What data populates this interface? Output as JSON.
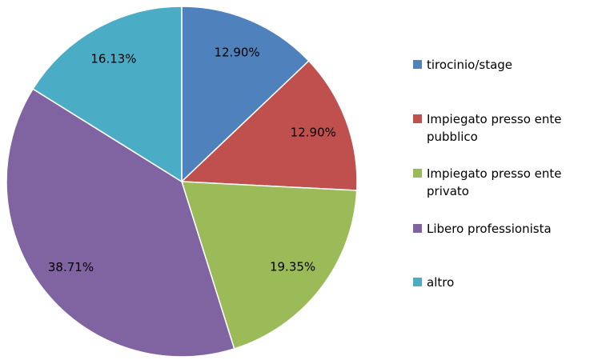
{
  "chart_data": {
    "type": "pie",
    "categories": [
      "tirocinio/stage",
      "Impiegato presso ente pubblico",
      "Impiegato presso ente privato",
      "Libero professionista",
      "altro"
    ],
    "values": [
      12.9,
      12.9,
      19.35,
      38.71,
      16.13
    ],
    "value_labels": [
      "12.90%",
      "12.90%",
      "19.35%",
      "38.71%",
      "16.13%"
    ],
    "colors": [
      "#4f81bd",
      "#c0504d",
      "#9bbb59",
      "#8064a2",
      "#4bacc6"
    ],
    "legend": "right"
  }
}
